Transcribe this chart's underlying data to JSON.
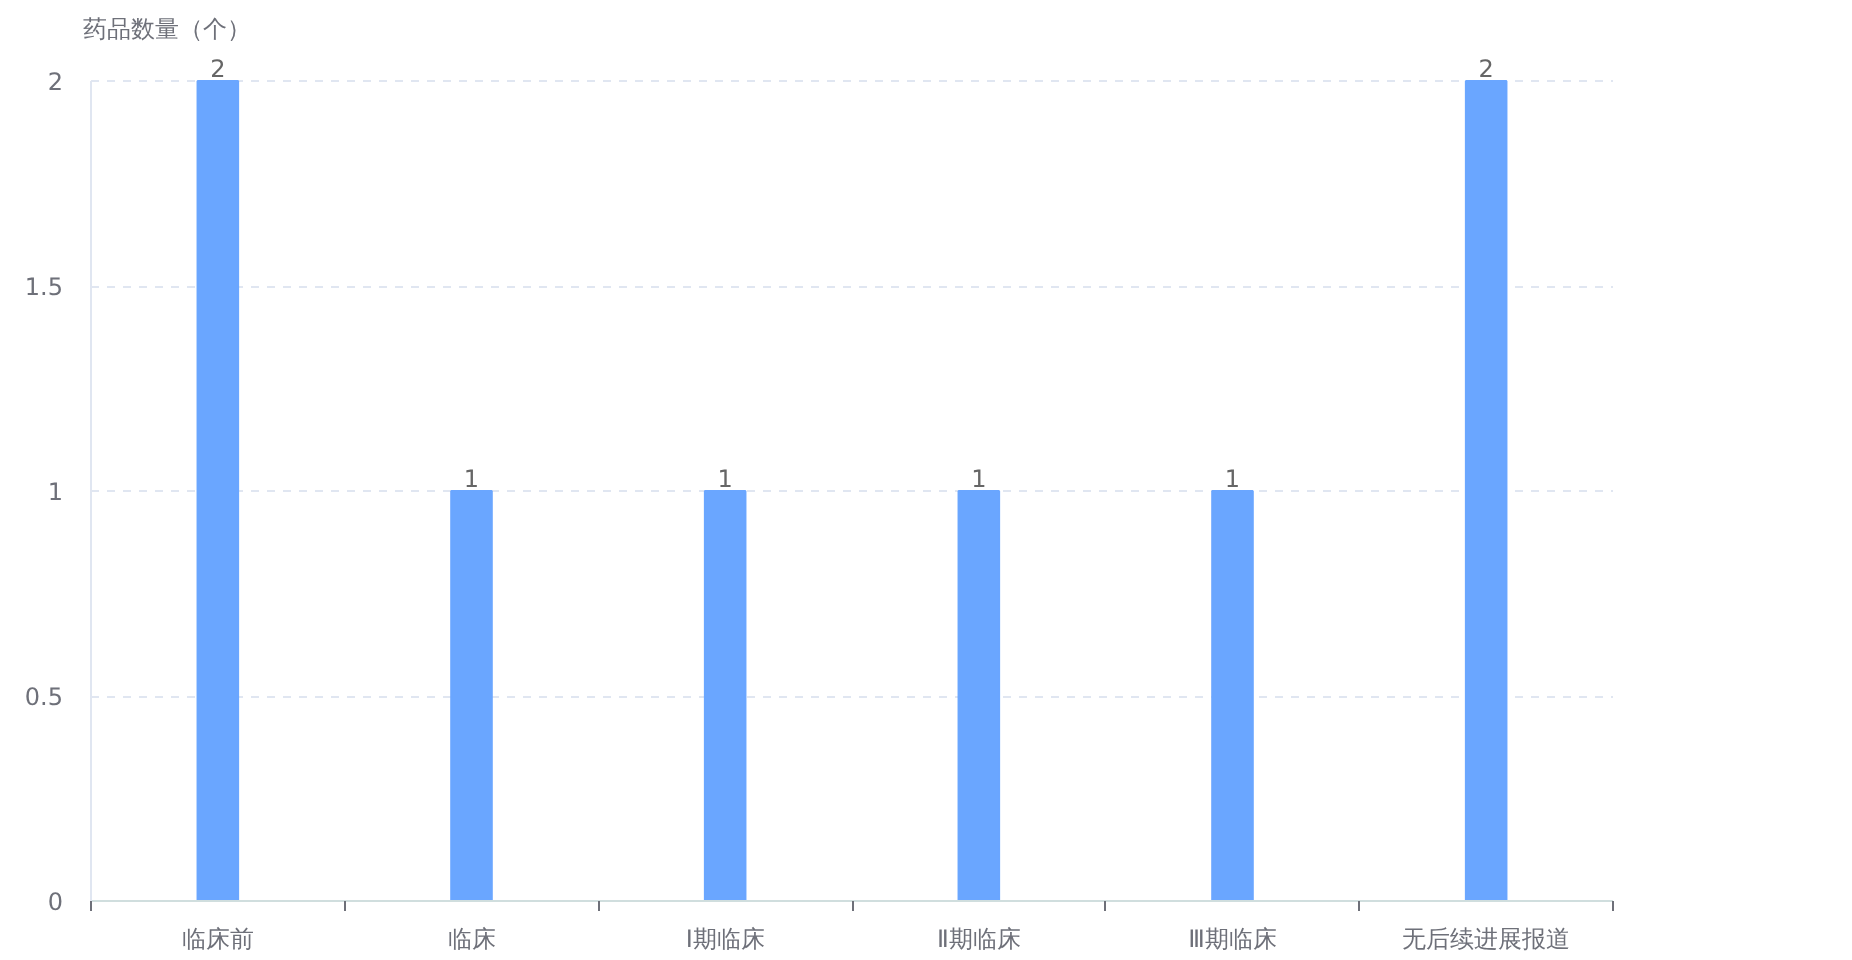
{
  "chart_data": {
    "type": "bar",
    "ylabel": "药品数量（个）",
    "categories": [
      "临床前",
      "临床",
      "Ⅰ期临床",
      "Ⅱ期临床",
      "Ⅲ期临床",
      "无后续进展报道"
    ],
    "values": [
      2,
      1,
      1,
      1,
      1,
      2
    ],
    "color": "#6aa6ff",
    "ylim": [
      0,
      2
    ],
    "yticks": [
      0,
      0.5,
      1,
      1.5,
      2
    ],
    "grid": "y",
    "data_labels": true
  }
}
